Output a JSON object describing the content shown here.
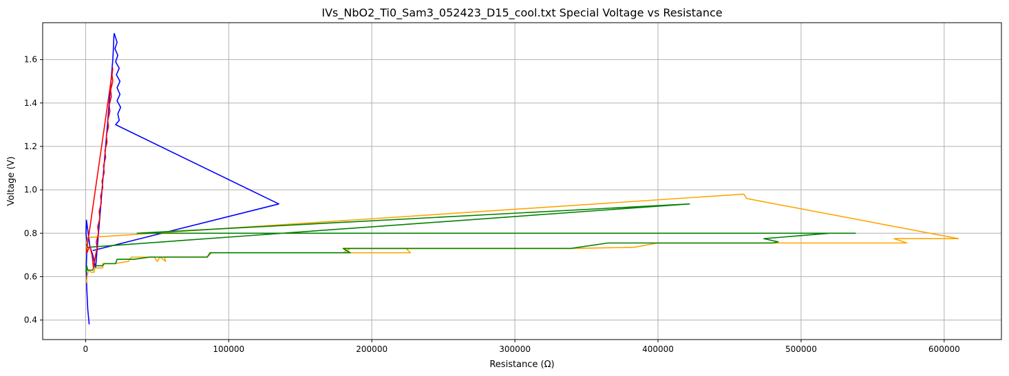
{
  "chart_data": {
    "type": "line",
    "title": "IVs_NbO2_Ti0_Sam3_052423_D15_cool.txt Special Voltage vs Resistance",
    "xlabel": "Resistance (Ω)",
    "ylabel": "Voltage (V)",
    "xlim": [
      -30000,
      640000
    ],
    "ylim": [
      0.31,
      1.77
    ],
    "grid": true,
    "xticks": [
      0,
      100000,
      200000,
      300000,
      400000,
      500000,
      600000
    ],
    "yticks": [
      0.4,
      0.6,
      0.8,
      1.0,
      1.2,
      1.4,
      1.6
    ],
    "xtick_labels": [
      "0",
      "100000",
      "200000",
      "300000",
      "400000",
      "500000",
      "600000"
    ],
    "ytick_labels": [
      "0.4",
      "0.6",
      "0.8",
      "1.0",
      "1.2",
      "1.4",
      "1.6"
    ],
    "series": [
      {
        "color": "#0000ff",
        "points": [
          [
            2500,
            0.38
          ],
          [
            1500,
            0.45
          ],
          [
            800,
            0.55
          ],
          [
            500,
            0.65
          ],
          [
            1000,
            0.75
          ],
          [
            300,
            0.8
          ],
          [
            600,
            0.86
          ],
          [
            1200,
            0.83
          ],
          [
            3000,
            0.74
          ],
          [
            5000,
            0.7
          ],
          [
            7000,
            0.64
          ],
          [
            8000,
            0.72
          ],
          [
            9000,
            0.8
          ],
          [
            10000,
            0.88
          ],
          [
            11000,
            0.96
          ],
          [
            12000,
            1.04
          ],
          [
            13000,
            1.12
          ],
          [
            14000,
            1.2
          ],
          [
            15000,
            1.28
          ],
          [
            16000,
            1.36
          ],
          [
            17000,
            1.44
          ],
          [
            18000,
            1.52
          ],
          [
            19000,
            1.6
          ],
          [
            19500,
            1.66
          ],
          [
            19800,
            1.71
          ],
          [
            20000,
            1.72
          ],
          [
            22000,
            1.68
          ],
          [
            20500,
            1.65
          ],
          [
            22500,
            1.62
          ],
          [
            21000,
            1.59
          ],
          [
            23500,
            1.56
          ],
          [
            21500,
            1.53
          ],
          [
            24000,
            1.5
          ],
          [
            22000,
            1.47
          ],
          [
            24000,
            1.44
          ],
          [
            22000,
            1.41
          ],
          [
            24500,
            1.38
          ],
          [
            22500,
            1.35
          ],
          [
            23500,
            1.32
          ],
          [
            21000,
            1.3
          ],
          [
            135000,
            0.935
          ],
          [
            5000,
            0.72
          ]
        ]
      },
      {
        "color": "#ffa500",
        "points": [
          [
            500,
            0.57
          ],
          [
            1000,
            0.6
          ],
          [
            2000,
            0.63
          ],
          [
            4000,
            0.62
          ],
          [
            6000,
            0.62
          ],
          [
            6500,
            0.64
          ],
          [
            12000,
            0.64
          ],
          [
            12000,
            0.66
          ],
          [
            20000,
            0.66
          ],
          [
            30000,
            0.67
          ],
          [
            32000,
            0.69
          ],
          [
            48000,
            0.69
          ],
          [
            50000,
            0.67
          ],
          [
            52000,
            0.69
          ],
          [
            56000,
            0.67
          ],
          [
            55000,
            0.69
          ],
          [
            85000,
            0.69
          ],
          [
            88000,
            0.71
          ],
          [
            105000,
            0.71
          ],
          [
            108000,
            0.71
          ],
          [
            105000,
            0.71
          ],
          [
            180000,
            0.71
          ],
          [
            185000,
            0.73
          ],
          [
            224000,
            0.73
          ],
          [
            227000,
            0.71
          ],
          [
            184000,
            0.71
          ],
          [
            180000,
            0.73
          ],
          [
            340000,
            0.73
          ],
          [
            383000,
            0.735
          ],
          [
            400000,
            0.755
          ],
          [
            565000,
            0.755
          ],
          [
            574000,
            0.755
          ],
          [
            565000,
            0.775
          ],
          [
            610000,
            0.775
          ],
          [
            462000,
            0.96
          ],
          [
            460000,
            0.98
          ],
          [
            1500,
            0.78
          ],
          [
            600,
            0.72
          ]
        ]
      },
      {
        "color": "#008000",
        "points": [
          [
            300,
            0.62
          ],
          [
            800,
            0.65
          ],
          [
            1500,
            0.63
          ],
          [
            5000,
            0.63
          ],
          [
            6000,
            0.65
          ],
          [
            12000,
            0.65
          ],
          [
            13000,
            0.66
          ],
          [
            21000,
            0.66
          ],
          [
            22000,
            0.68
          ],
          [
            34000,
            0.68
          ],
          [
            45000,
            0.69
          ],
          [
            85000,
            0.69
          ],
          [
            87000,
            0.71
          ],
          [
            185000,
            0.71
          ],
          [
            180000,
            0.73
          ],
          [
            339000,
            0.73
          ],
          [
            365000,
            0.755
          ],
          [
            480000,
            0.755
          ],
          [
            484000,
            0.76
          ],
          [
            474000,
            0.775
          ],
          [
            520000,
            0.8
          ],
          [
            538000,
            0.8
          ],
          [
            36000,
            0.8
          ],
          [
            422000,
            0.935
          ],
          [
            1000,
            0.735
          ],
          [
            500,
            0.75
          ]
        ]
      },
      {
        "color": "#ff0000",
        "points": [
          [
            1000,
            0.71
          ],
          [
            1500,
            0.72
          ],
          [
            3000,
            0.74
          ],
          [
            4500,
            0.7
          ],
          [
            5500,
            0.64
          ],
          [
            7000,
            0.7
          ],
          [
            8000,
            0.73
          ],
          [
            7500,
            0.76
          ],
          [
            9000,
            0.8
          ],
          [
            8500,
            0.83
          ],
          [
            10000,
            0.87
          ],
          [
            9500,
            0.9
          ],
          [
            11000,
            0.94
          ],
          [
            10500,
            0.97
          ],
          [
            12000,
            1.01
          ],
          [
            11500,
            1.04
          ],
          [
            13000,
            1.08
          ],
          [
            12500,
            1.11
          ],
          [
            14000,
            1.15
          ],
          [
            13500,
            1.18
          ],
          [
            15000,
            1.22
          ],
          [
            14500,
            1.25
          ],
          [
            16000,
            1.29
          ],
          [
            15500,
            1.32
          ],
          [
            17000,
            1.36
          ],
          [
            16500,
            1.39
          ],
          [
            18000,
            1.43
          ],
          [
            17500,
            1.46
          ],
          [
            19000,
            1.5
          ],
          [
            18500,
            1.53
          ],
          [
            19000,
            1.56
          ],
          [
            500,
            0.71
          ]
        ]
      }
    ]
  }
}
